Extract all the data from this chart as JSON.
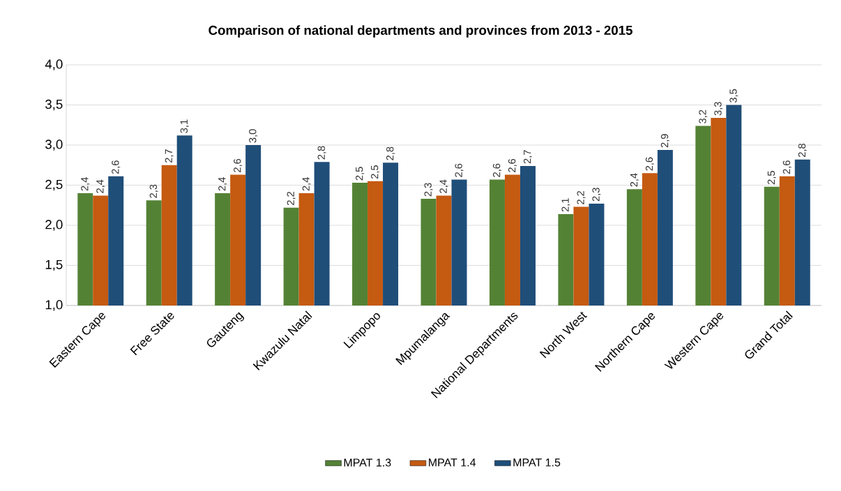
{
  "chart_data": {
    "type": "bar",
    "title": "Comparison of national departments and provinces from 2013 - 2015",
    "categories": [
      "Eastern Cape",
      "Free State",
      "Gauteng",
      "Kwazulu Natal",
      "Limpopo",
      "Mpumalanga",
      "National Departments",
      "North West",
      "Northern Cape",
      "Western Cape",
      "Grand Total"
    ],
    "series": [
      {
        "name": "MPAT 1.3",
        "color": "#548235",
        "values": [
          2.4,
          2.31,
          2.4,
          2.22,
          2.53,
          2.33,
          2.57,
          2.14,
          2.45,
          3.24,
          2.48
        ],
        "value_labels": [
          "2,4",
          "2,3",
          "2,4",
          "2,2",
          "2,5",
          "2,3",
          "2,6",
          "2,1",
          "2,4",
          "3,2",
          "2,5"
        ]
      },
      {
        "name": "MPAT 1.4",
        "color": "#c55a11",
        "values": [
          2.37,
          2.75,
          2.63,
          2.4,
          2.55,
          2.37,
          2.63,
          2.23,
          2.65,
          3.34,
          2.61
        ],
        "value_labels": [
          "2,4",
          "2,7",
          "2,6",
          "2,4",
          "2,5",
          "2,4",
          "2,6",
          "2,2",
          "2,6",
          "3,3",
          "2,6"
        ]
      },
      {
        "name": "MPAT 1.5",
        "color": "#1f4e79",
        "values": [
          2.61,
          3.12,
          3.0,
          2.79,
          2.78,
          2.57,
          2.74,
          2.27,
          2.94,
          3.5,
          2.82
        ],
        "value_labels": [
          "2,6",
          "3,1",
          "3,0",
          "2,8",
          "2,8",
          "2,6",
          "2,7",
          "2,3",
          "2,9",
          "3,5",
          "2,8"
        ]
      }
    ],
    "ylim": [
      1.0,
      4.0
    ],
    "yticks": [
      {
        "value": 1.0,
        "label": "1,0"
      },
      {
        "value": 1.5,
        "label": "1,5"
      },
      {
        "value": 2.0,
        "label": "2,0"
      },
      {
        "value": 2.5,
        "label": "2,5"
      },
      {
        "value": 3.0,
        "label": "3,0"
      },
      {
        "value": 3.5,
        "label": "3,5"
      },
      {
        "value": 4.0,
        "label": "4,0"
      }
    ],
    "grid": "y",
    "legend": "bottom"
  }
}
